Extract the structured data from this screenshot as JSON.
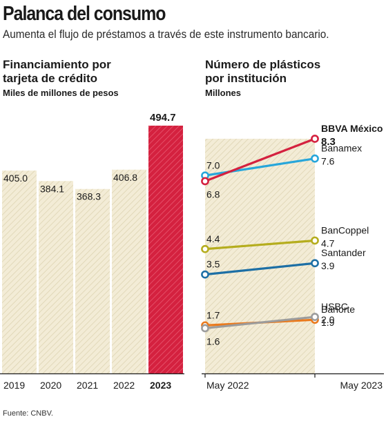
{
  "header": {
    "title": "Palanca del consumo",
    "subtitle": "Aumenta el flujo de préstamos a través de este instrumento bancario."
  },
  "footer": {
    "source": "Fuente: CNBV."
  },
  "colors": {
    "bar_fill": "#f3ecd6",
    "bar_hatch": "#ddd3b2",
    "highlight_fill": "#d4213f",
    "highlight_hatch": "#e95a72",
    "axis": "#1a1a1a"
  },
  "chart_data": [
    {
      "type": "bar",
      "title": "Financiamiento por tarjeta de crédito",
      "title_lines": [
        "Financiamiento por",
        "tarjeta de crédito"
      ],
      "unit": "Miles de millones de pesos",
      "categories": [
        "2019",
        "2020",
        "2021",
        "2022",
        "2023"
      ],
      "values": [
        405.0,
        384.1,
        368.3,
        406.8,
        494.7
      ],
      "value_labels": [
        "405.0",
        "384.1",
        "368.3",
        "406.8",
        "494.7"
      ],
      "highlight_index": 4,
      "ylim": [
        0,
        494.7
      ]
    },
    {
      "type": "line",
      "title": "Número de plásticos por institución",
      "title_lines": [
        "Número de plásticos",
        "por institución"
      ],
      "unit": "Millones",
      "x": [
        "May 2022",
        "May 2023"
      ],
      "ylim": [
        0,
        8.3
      ],
      "series": [
        {
          "name": "BBVA México",
          "values": [
            6.8,
            8.3
          ],
          "labels": [
            "6.8",
            "8.3"
          ],
          "color": "#d4213f",
          "bold_end": true
        },
        {
          "name": "Banamex",
          "values": [
            7.0,
            7.6
          ],
          "labels": [
            "7.0",
            "7.6"
          ],
          "color": "#27a6da"
        },
        {
          "name": "BanCoppel",
          "values": [
            4.4,
            4.7
          ],
          "labels": [
            "4.4",
            "4.7"
          ],
          "color": "#b5ad1e"
        },
        {
          "name": "Santander",
          "values": [
            3.5,
            3.9
          ],
          "labels": [
            "3.5",
            "3.9"
          ],
          "color": "#1d6fa5"
        },
        {
          "name": "HSBC",
          "values": [
            1.6,
            2.0
          ],
          "labels": [
            "1.6",
            "2.0"
          ],
          "color": "#9c9c9c"
        },
        {
          "name": "Banorte",
          "values": [
            1.7,
            1.9
          ],
          "labels": [
            "1.7",
            "1.9"
          ],
          "color": "#ea7a1d"
        }
      ]
    }
  ]
}
